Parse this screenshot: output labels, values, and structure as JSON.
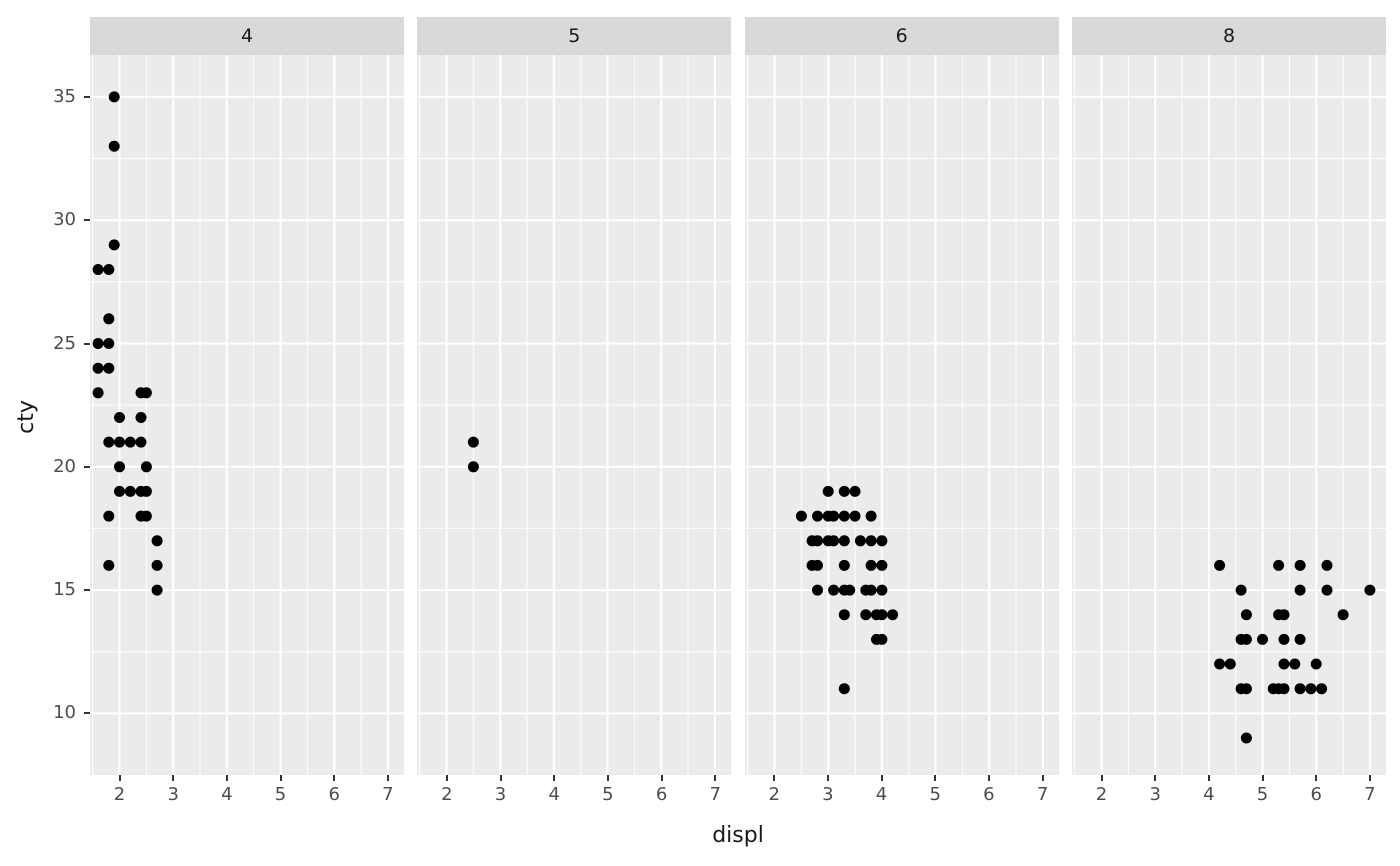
{
  "chart_data": {
    "type": "scatter",
    "title": "",
    "xlabel": "displ",
    "ylabel": "cty",
    "facet_variable": "cyl",
    "facet_labels": [
      "4",
      "5",
      "6",
      "8"
    ],
    "x_ticks": [
      2,
      3,
      4,
      5,
      6,
      7
    ],
    "y_ticks": [
      10,
      15,
      20,
      25,
      30,
      35
    ],
    "x_minor_ticks": [
      1.5,
      2.5,
      3.5,
      4.5,
      5.5,
      6.5
    ],
    "y_minor_ticks": [
      12.5,
      17.5,
      22.5,
      27.5,
      32.5
    ],
    "xlim": [
      1.45,
      7.3
    ],
    "ylim": [
      7.5,
      36.7
    ],
    "grid": true,
    "legend": "none",
    "point_radius_px": 5.5,
    "colors": {
      "background": "#FFFFFF",
      "panel_background": "#EBEBEB",
      "strip_background": "#D9D9D9",
      "grid_major": "#FFFFFF",
      "grid_minor": "#FFFFFF",
      "point": "#000000",
      "tick_label": "#4D4D4D",
      "axis_tick": "#333333",
      "strip_label": "#1A1A1A",
      "axis_title": "#1A1A1A"
    },
    "facets": [
      {
        "label": "4",
        "points": [
          [
            1.6,
            28
          ],
          [
            1.6,
            25
          ],
          [
            1.6,
            24
          ],
          [
            1.6,
            23
          ],
          [
            1.8,
            28
          ],
          [
            1.8,
            26
          ],
          [
            1.8,
            25
          ],
          [
            1.8,
            24
          ],
          [
            1.8,
            21
          ],
          [
            1.8,
            18
          ],
          [
            1.8,
            16
          ],
          [
            1.9,
            35
          ],
          [
            1.9,
            33
          ],
          [
            1.9,
            29
          ],
          [
            2.0,
            22
          ],
          [
            2.0,
            21
          ],
          [
            2.0,
            20
          ],
          [
            2.0,
            19
          ],
          [
            2.2,
            21
          ],
          [
            2.2,
            19
          ],
          [
            2.4,
            23
          ],
          [
            2.4,
            22
          ],
          [
            2.4,
            21
          ],
          [
            2.4,
            19
          ],
          [
            2.4,
            18
          ],
          [
            2.5,
            23
          ],
          [
            2.5,
            20
          ],
          [
            2.5,
            19
          ],
          [
            2.5,
            18
          ],
          [
            2.7,
            17
          ],
          [
            2.7,
            16
          ],
          [
            2.7,
            15
          ]
        ]
      },
      {
        "label": "5",
        "points": [
          [
            2.5,
            21
          ],
          [
            2.5,
            20
          ]
        ]
      },
      {
        "label": "6",
        "points": [
          [
            2.5,
            18
          ],
          [
            2.7,
            17
          ],
          [
            2.7,
            16
          ],
          [
            2.8,
            18
          ],
          [
            2.8,
            17
          ],
          [
            2.8,
            16
          ],
          [
            2.8,
            15
          ],
          [
            3.0,
            19
          ],
          [
            3.0,
            18
          ],
          [
            3.0,
            17
          ],
          [
            3.1,
            18
          ],
          [
            3.1,
            17
          ],
          [
            3.1,
            15
          ],
          [
            3.3,
            19
          ],
          [
            3.3,
            18
          ],
          [
            3.3,
            17
          ],
          [
            3.3,
            16
          ],
          [
            3.3,
            15
          ],
          [
            3.3,
            14
          ],
          [
            3.3,
            11
          ],
          [
            3.4,
            15
          ],
          [
            3.5,
            19
          ],
          [
            3.5,
            18
          ],
          [
            3.6,
            17
          ],
          [
            3.7,
            15
          ],
          [
            3.7,
            14
          ],
          [
            3.8,
            18
          ],
          [
            3.8,
            17
          ],
          [
            3.8,
            16
          ],
          [
            3.8,
            15
          ],
          [
            3.9,
            14
          ],
          [
            3.9,
            13
          ],
          [
            4.0,
            17
          ],
          [
            4.0,
            16
          ],
          [
            4.0,
            15
          ],
          [
            4.0,
            14
          ],
          [
            4.0,
            13
          ],
          [
            4.2,
            14
          ]
        ]
      },
      {
        "label": "8",
        "points": [
          [
            4.2,
            16
          ],
          [
            4.2,
            12
          ],
          [
            4.4,
            12
          ],
          [
            4.6,
            15
          ],
          [
            4.6,
            13
          ],
          [
            4.6,
            11
          ],
          [
            4.7,
            14
          ],
          [
            4.7,
            13
          ],
          [
            4.7,
            11
          ],
          [
            4.7,
            9
          ],
          [
            5.0,
            13
          ],
          [
            5.2,
            11
          ],
          [
            5.3,
            16
          ],
          [
            5.3,
            14
          ],
          [
            5.3,
            11
          ],
          [
            5.4,
            14
          ],
          [
            5.4,
            13
          ],
          [
            5.4,
            12
          ],
          [
            5.4,
            11
          ],
          [
            5.6,
            12
          ],
          [
            5.7,
            16
          ],
          [
            5.7,
            15
          ],
          [
            5.7,
            13
          ],
          [
            5.7,
            11
          ],
          [
            5.9,
            11
          ],
          [
            6.0,
            12
          ],
          [
            6.1,
            11
          ],
          [
            6.2,
            16
          ],
          [
            6.2,
            15
          ],
          [
            6.5,
            14
          ],
          [
            7.0,
            15
          ]
        ]
      }
    ]
  }
}
